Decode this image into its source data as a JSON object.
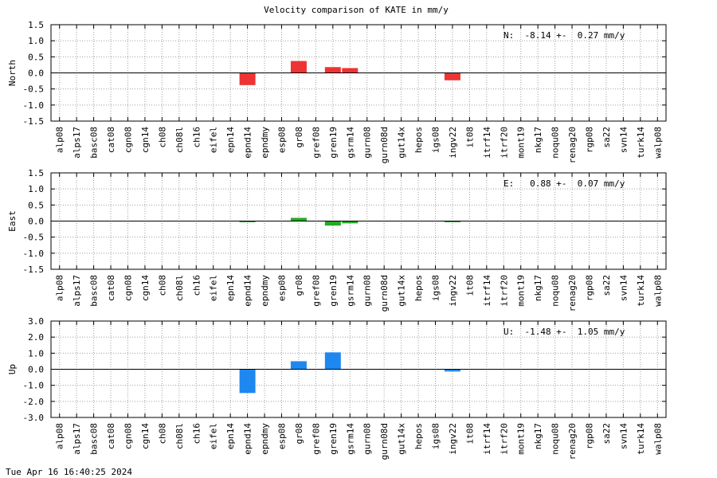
{
  "title": "Velocity comparison of KATE in mm/y",
  "timestamp": "Tue Apr 16 16:40:25 2024",
  "chart_data": {
    "type": "bar",
    "categories": [
      "alp08",
      "alps17",
      "basc08",
      "cat08",
      "cgn08",
      "cgn14",
      "ch08",
      "ch08l",
      "ch16",
      "eifel",
      "epn14",
      "epnd14",
      "epndmy",
      "esp08",
      "gr08",
      "gref08",
      "gren19",
      "gsrm14",
      "gurn08",
      "gurn08d",
      "gut14x",
      "hepos",
      "igs08",
      "ingv22",
      "it08",
      "itrf14",
      "itrf20",
      "mont19",
      "nkg17",
      "noqu08",
      "renag20",
      "rgp08",
      "sa22",
      "svn14",
      "turk14",
      "walp08"
    ],
    "grid": true,
    "panels": [
      {
        "ylabel": "North",
        "ylim": [
          -1.5,
          1.5
        ],
        "yticks": [
          "1.5",
          "1.0",
          "0.5",
          "0.0",
          "-0.5",
          "-1.0",
          "-1.5"
        ],
        "summary": "N:  -8.14 +-  0.27 mm/y",
        "color": "#ee3333",
        "values": {
          "epnd14": -0.38,
          "gr08": 0.37,
          "gren19": 0.18,
          "gsrm14": 0.15,
          "ingv22": -0.23
        }
      },
      {
        "ylabel": "East",
        "ylim": [
          -1.5,
          1.5
        ],
        "yticks": [
          "1.5",
          "1.0",
          "0.5",
          "0.0",
          "-0.5",
          "-1.0",
          "-1.5"
        ],
        "summary": "E:   0.88 +-  0.07 mm/y",
        "color": "#22aa22",
        "values": {
          "epnd14": -0.03,
          "gr08": 0.1,
          "gren19": -0.14,
          "gsrm14": -0.07,
          "ingv22": -0.02
        }
      },
      {
        "ylabel": "Up",
        "ylim": [
          -3.0,
          3.0
        ],
        "yticks": [
          "3.0",
          "2.0",
          "1.0",
          "0.0",
          "-1.0",
          "-2.0",
          "-3.0"
        ],
        "summary": "U:  -1.48 +-  1.05 mm/y",
        "color": "#1e88f0",
        "values": {
          "epnd14": -1.48,
          "gr08": 0.5,
          "gren19": 1.05,
          "ingv22": -0.14
        }
      }
    ]
  }
}
